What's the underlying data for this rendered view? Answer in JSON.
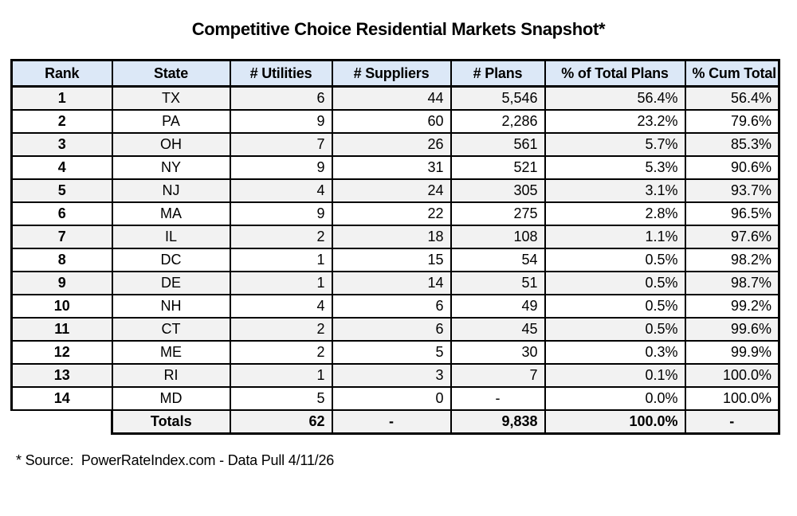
{
  "title": "Competitive Choice Residential Markets Snapshot*",
  "source_note": "* Source:  PowerRateIndex.com - Data Pull 4/11/26",
  "colors": {
    "header_bg": "#dce8f7",
    "row_alt_bg": "#f2f2f2",
    "row_bg": "#ffffff",
    "border": "#000000",
    "text": "#000000"
  },
  "chart_data": {
    "type": "table",
    "title": "Competitive Choice Residential Markets Snapshot*",
    "columns": [
      "Rank",
      "State",
      "# Utilities",
      "# Suppliers",
      "# Plans",
      "% of Total Plans",
      "% Cum Total"
    ],
    "rows": [
      [
        "1",
        "TX",
        "6",
        "44",
        "5,546",
        "56.4%",
        "56.4%"
      ],
      [
        "2",
        "PA",
        "9",
        "60",
        "2,286",
        "23.2%",
        "79.6%"
      ],
      [
        "3",
        "OH",
        "7",
        "26",
        "561",
        "5.7%",
        "85.3%"
      ],
      [
        "4",
        "NY",
        "9",
        "31",
        "521",
        "5.3%",
        "90.6%"
      ],
      [
        "5",
        "NJ",
        "4",
        "24",
        "305",
        "3.1%",
        "93.7%"
      ],
      [
        "6",
        "MA",
        "9",
        "22",
        "275",
        "2.8%",
        "96.5%"
      ],
      [
        "7",
        "IL",
        "2",
        "18",
        "108",
        "1.1%",
        "97.6%"
      ],
      [
        "8",
        "DC",
        "1",
        "15",
        "54",
        "0.5%",
        "98.2%"
      ],
      [
        "9",
        "DE",
        "1",
        "14",
        "51",
        "0.5%",
        "98.7%"
      ],
      [
        "10",
        "NH",
        "4",
        "6",
        "49",
        "0.5%",
        "99.2%"
      ],
      [
        "11",
        "CT",
        "2",
        "6",
        "45",
        "0.5%",
        "99.6%"
      ],
      [
        "12",
        "ME",
        "2",
        "5",
        "30",
        "0.3%",
        "99.9%"
      ],
      [
        "13",
        "RI",
        "1",
        "3",
        "7",
        "0.1%",
        "100.0%"
      ],
      [
        "14",
        "MD",
        "5",
        "0",
        "-",
        "0.0%",
        "100.0%"
      ]
    ],
    "totals": [
      "",
      "Totals",
      "62",
      "-",
      "9,838",
      "100.0%",
      "-"
    ],
    "source": "* Source:  PowerRateIndex.com - Data Pull 4/11/26"
  }
}
